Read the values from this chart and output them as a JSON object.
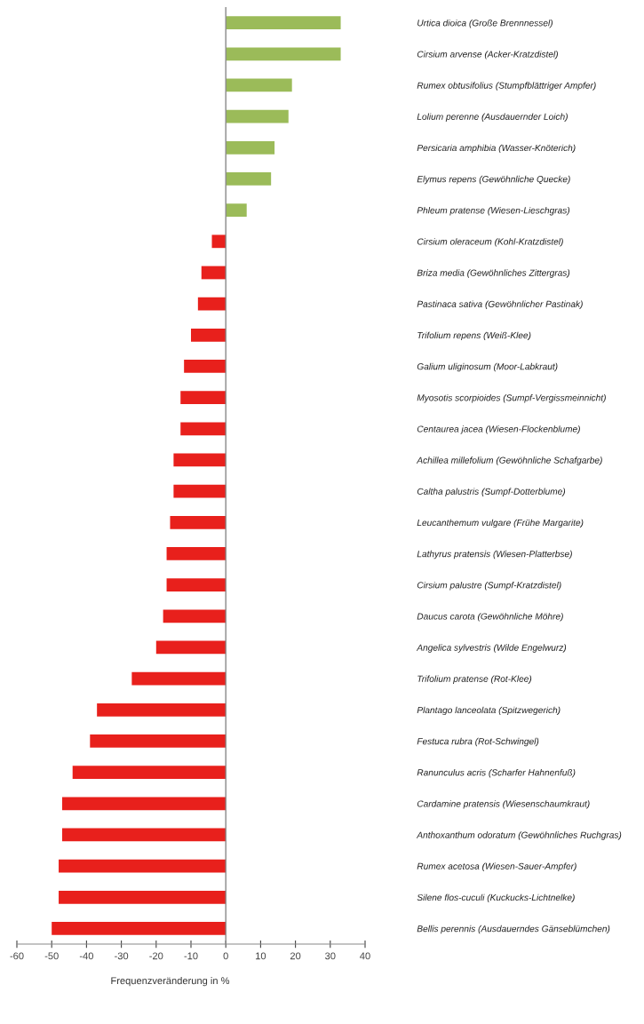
{
  "chart_data": {
    "type": "bar",
    "orientation": "horizontal",
    "xlabel": "Frequenzveränderung in %",
    "categories": [
      "Urtica dioica (Große Brennnessel)",
      "Cirsium arvense (Acker-Kratzdistel)",
      "Rumex obtusifolius (Stumpfblättriger Ampfer)",
      "Lolium perenne (Ausdauernder Loich)",
      "Persicaria amphibia (Wasser-Knöterich)",
      "Elymus repens (Gewöhnliche Quecke)",
      "Phleum pratense (Wiesen-Lieschgras)",
      "Cirsium oleraceum (Kohl-Kratzdistel)",
      "Briza media (Gewöhnliches Zittergras)",
      "Pastinaca sativa (Gewöhnlicher Pastinak)",
      "Trifolium repens (Weiß-Klee)",
      "Galium uliginosum (Moor-Labkraut)",
      "Myosotis scorpioides (Sumpf-Vergissmeinnicht)",
      "Centaurea jacea (Wiesen-Flockenblume)",
      "Achillea millefolium (Gewöhnliche Schafgarbe)",
      "Caltha palustris (Sumpf-Dotterblume)",
      "Leucanthemum vulgare (Frühe Margarite)",
      "Lathyrus pratensis (Wiesen-Platterbse)",
      "Cirsium palustre (Sumpf-Kratzdistel)",
      "Daucus carota (Gewöhnliche Möhre)",
      "Angelica sylvestris (Wilde Engelwurz)",
      "Trifolium pratense (Rot-Klee)",
      "Plantago lanceolata (Spitzwegerich)",
      "Festuca rubra (Rot-Schwingel)",
      "Ranunculus acris (Scharfer Hahnenfuß)",
      "Cardamine pratensis (Wiesenschaumkraut)",
      "Anthoxanthum odoratum (Gewöhnliches Ruchgras)",
      "Rumex acetosa (Wiesen-Sauer-Ampfer)",
      "Silene flos-cuculi (Kuckucks-Lichtnelke)",
      "Bellis perennis (Ausdauerndes Gänseblümchen)"
    ],
    "values": [
      33,
      33,
      19,
      18,
      14,
      13,
      6,
      -4,
      -7,
      -8,
      -10,
      -12,
      -13,
      -13,
      -15,
      -15,
      -16,
      -17,
      -17,
      -18,
      -20,
      -27,
      -37,
      -39,
      -44,
      -47,
      -47,
      -48,
      -48,
      -50
    ],
    "colors": [
      "#9bbb59",
      "#9bbb59",
      "#9bbb59",
      "#9bbb59",
      "#9bbb59",
      "#9bbb59",
      "#9bbb59",
      "#e8201c",
      "#e8201c",
      "#e8201c",
      "#e8201c",
      "#e8201c",
      "#e8201c",
      "#e8201c",
      "#e8201c",
      "#e8201c",
      "#e8201c",
      "#e8201c",
      "#e8201c",
      "#e8201c",
      "#e8201c",
      "#e8201c",
      "#e8201c",
      "#e8201c",
      "#e8201c",
      "#e8201c",
      "#e8201c",
      "#e8201c",
      "#e8201c",
      "#e8201c"
    ],
    "xlim": [
      -60,
      40
    ],
    "xticks": [
      -60,
      -50,
      -40,
      -30,
      -20,
      -10,
      0,
      10,
      20,
      30,
      40
    ],
    "ref_lines": [
      {
        "axis": "x",
        "value": 0,
        "color": "#888888"
      }
    ],
    "grid": false,
    "legend": false
  }
}
